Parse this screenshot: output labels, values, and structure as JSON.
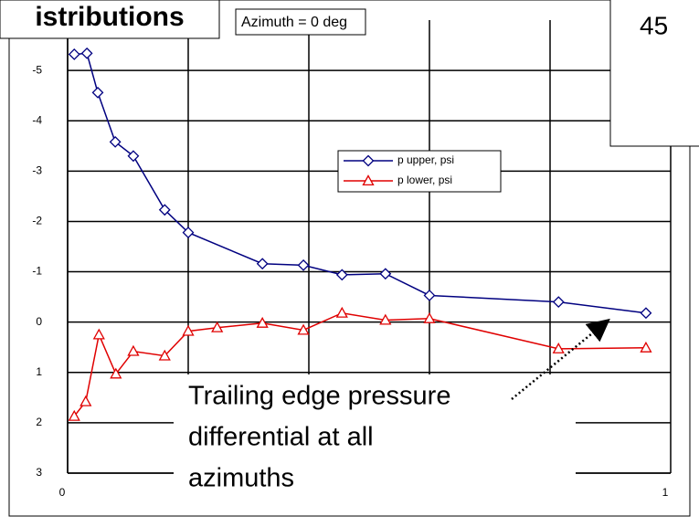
{
  "chart_data": {
    "type": "line",
    "title": "istributions",
    "subtitle": "Azimuth = 0 deg",
    "corner_text": "45",
    "annotation": [
      "Trailing edge pressure",
      "differential at all",
      "azimuths"
    ],
    "xlim": [
      0,
      1
    ],
    "xticks": [
      0,
      0.2,
      0.4,
      0.6,
      0.8,
      1
    ],
    "ylim": [
      3,
      -6
    ],
    "yticks": [
      -5,
      -4,
      -3,
      -2,
      -1,
      0,
      1,
      2,
      3
    ],
    "grid": true,
    "legend": "upper right",
    "series": [
      {
        "name": "p upper, psi",
        "color": "#000080",
        "marker": "diamond",
        "x": [
          0.011,
          0.032,
          0.05,
          0.079,
          0.109,
          0.161,
          0.2,
          0.323,
          0.391,
          0.455,
          0.527,
          0.6,
          0.814,
          0.959
        ],
        "values": [
          -5.32,
          -5.34,
          -4.56,
          -3.58,
          -3.3,
          -2.23,
          -1.78,
          -1.16,
          -1.13,
          -0.94,
          -0.96,
          -0.53,
          -0.4,
          -0.18
        ]
      },
      {
        "name": "p lower, psi",
        "color": "#e00000",
        "marker": "triangle",
        "x": [
          0.011,
          0.03,
          0.052,
          0.08,
          0.109,
          0.161,
          0.2,
          0.248,
          0.323,
          0.391,
          0.455,
          0.527,
          0.6,
          0.814,
          0.959
        ],
        "values": [
          1.87,
          1.58,
          0.25,
          1.03,
          0.58,
          0.67,
          0.18,
          0.11,
          0.02,
          0.16,
          -0.18,
          -0.04,
          -0.07,
          0.53,
          0.51
        ]
      }
    ]
  }
}
